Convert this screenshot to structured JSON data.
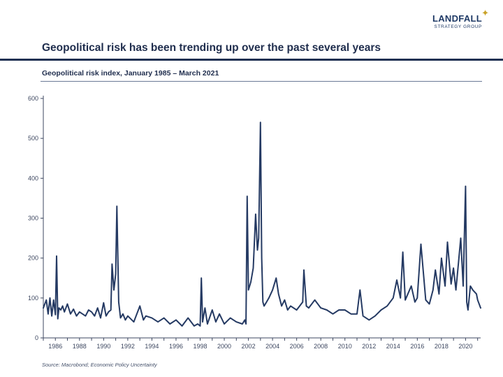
{
  "logo": {
    "name": "LANDFALL",
    "tagline": "STRATEGY GROUP",
    "star": "✦",
    "accent_color": "#c9a227"
  },
  "headline": "Geopolitical risk has been trending up over the past several years",
  "source": "Source: Macrobond;  Economic Policy Uncertainty",
  "colors": {
    "line": "#253a63",
    "axis": "#3d4760"
  },
  "chart_data": {
    "type": "line",
    "title": "Geopolitical risk index, January 1985 – March 2021",
    "xlabel": "",
    "ylabel": "",
    "xlim": [
      1985.0,
      2021.25
    ],
    "ylim": [
      0,
      600
    ],
    "yticks": [
      0,
      100,
      200,
      300,
      400,
      500,
      600
    ],
    "xticks": [
      1986,
      1988,
      1990,
      1992,
      1994,
      1996,
      1998,
      2000,
      2002,
      2004,
      2006,
      2008,
      2010,
      2012,
      2014,
      2016,
      2018,
      2020
    ],
    "grid": false,
    "series": [
      {
        "name": "Geopolitical risk index",
        "x": [
          1985.0,
          1985.25,
          1985.4,
          1985.55,
          1985.7,
          1985.85,
          1986.0,
          1986.1,
          1986.2,
          1986.3,
          1986.45,
          1986.6,
          1986.75,
          1987.0,
          1987.25,
          1987.5,
          1987.75,
          1988.0,
          1988.25,
          1988.5,
          1988.75,
          1989.0,
          1989.25,
          1989.5,
          1989.75,
          1990.0,
          1990.2,
          1990.4,
          1990.6,
          1990.7,
          1990.85,
          1991.0,
          1991.1,
          1991.25,
          1991.4,
          1991.6,
          1991.8,
          1992.0,
          1992.5,
          1993.0,
          1993.3,
          1993.5,
          1994.0,
          1994.5,
          1995.0,
          1995.5,
          1996.0,
          1996.5,
          1997.0,
          1997.5,
          1997.8,
          1998.0,
          1998.1,
          1998.2,
          1998.4,
          1998.6,
          1999.0,
          1999.3,
          1999.6,
          2000.0,
          2000.5,
          2001.0,
          2001.5,
          2001.7,
          2001.8,
          2001.9,
          2002.0,
          2002.2,
          2002.4,
          2002.6,
          2002.75,
          2002.85,
          2003.0,
          2003.1,
          2003.2,
          2003.3,
          2003.5,
          2003.7,
          2004.0,
          2004.3,
          2004.5,
          2004.75,
          2005.0,
          2005.25,
          2005.5,
          2006.0,
          2006.5,
          2006.6,
          2006.8,
          2007.0,
          2007.5,
          2008.0,
          2008.5,
          2009.0,
          2009.5,
          2010.0,
          2010.5,
          2011.0,
          2011.25,
          2011.5,
          2012.0,
          2012.5,
          2013.0,
          2013.5,
          2014.0,
          2014.3,
          2014.6,
          2014.8,
          2015.0,
          2015.5,
          2015.8,
          2016.0,
          2016.3,
          2016.7,
          2017.0,
          2017.3,
          2017.5,
          2017.8,
          2018.0,
          2018.3,
          2018.5,
          2018.8,
          2019.0,
          2019.2,
          2019.4,
          2019.6,
          2019.8,
          2020.0,
          2020.1,
          2020.2,
          2020.4,
          2020.6,
          2020.9,
          2021.0,
          2021.25
        ],
        "values": [
          75,
          95,
          60,
          100,
          55,
          95,
          58,
          205,
          48,
          75,
          70,
          80,
          65,
          85,
          60,
          72,
          55,
          65,
          60,
          55,
          70,
          65,
          55,
          75,
          50,
          88,
          55,
          65,
          70,
          185,
          120,
          160,
          330,
          90,
          50,
          60,
          45,
          55,
          40,
          80,
          45,
          55,
          50,
          40,
          50,
          35,
          45,
          30,
          50,
          30,
          35,
          30,
          150,
          40,
          75,
          35,
          70,
          40,
          60,
          35,
          50,
          40,
          35,
          45,
          35,
          355,
          120,
          140,
          175,
          310,
          220,
          250,
          540,
          200,
          90,
          80,
          90,
          100,
          120,
          150,
          110,
          80,
          95,
          70,
          80,
          70,
          90,
          170,
          80,
          75,
          95,
          75,
          70,
          60,
          70,
          70,
          60,
          60,
          120,
          55,
          45,
          55,
          70,
          80,
          100,
          145,
          100,
          215,
          95,
          130,
          90,
          100,
          235,
          95,
          85,
          120,
          170,
          110,
          200,
          130,
          240,
          135,
          175,
          120,
          185,
          250,
          130,
          380,
          90,
          70,
          130,
          120,
          110,
          95,
          75
        ],
        "color": "#253a63"
      }
    ]
  }
}
